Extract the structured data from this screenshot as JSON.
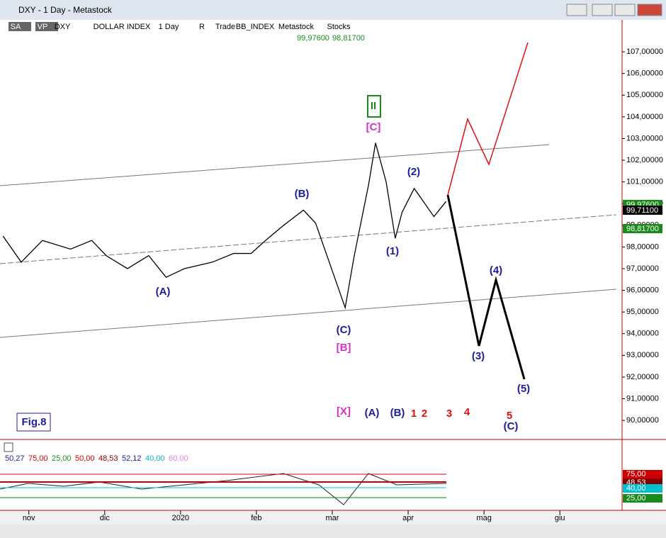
{
  "window": {
    "title": "DXY - 1 Day - Metastock"
  },
  "toolbar": {
    "items": [
      "SA",
      "VP",
      "DXY",
      "DOLLAR INDEX",
      "1 Day",
      "R",
      "Trade",
      "BB_INDEX",
      "Metastock",
      "Stocks"
    ],
    "quote_high": "99,97600",
    "quote_low": "98,81700"
  },
  "chart_data": {
    "type": "line",
    "color": "#000000",
    "x": [
      -0.34,
      -0.1,
      0.18,
      0.55,
      0.83,
      1.02,
      1.3,
      1.58,
      1.81,
      2.05,
      2.42,
      2.7,
      2.93,
      3.12,
      3.36,
      3.62,
      3.78,
      3.96,
      4.17,
      4.29,
      4.48,
      4.57,
      4.71,
      4.83,
      4.92,
      5.08,
      5.18,
      5.34,
      5.5
    ],
    "values": [
      98.5,
      97.3,
      98.3,
      97.9,
      98.3,
      97.6,
      97.0,
      97.6,
      96.6,
      97.0,
      97.3,
      97.7,
      97.7,
      98.3,
      99.0,
      99.7,
      99.1,
      97.3,
      95.2,
      97.6,
      100.9,
      102.8,
      101.0,
      98.4,
      99.6,
      100.7,
      100.2,
      99.4,
      100.1
    ],
    "xlim": [
      -0.38,
      7.82
    ],
    "xticks": [
      {
        "value": 0,
        "label": "nov"
      },
      {
        "value": 1,
        "label": "dic"
      },
      {
        "value": 2,
        "label": "2020"
      },
      {
        "value": 3,
        "label": "feb"
      },
      {
        "value": 4,
        "label": "mar"
      },
      {
        "value": 5,
        "label": "apr"
      },
      {
        "value": 6,
        "label": "mag"
      },
      {
        "value": 7,
        "label": "giu"
      }
    ],
    "ylim": [
      89.12,
      108.41
    ],
    "yticks": [
      {
        "value": 90,
        "label": "90,00000"
      },
      {
        "value": 91,
        "label": "91,00000"
      },
      {
        "value": 92,
        "label": "92,00000"
      },
      {
        "value": 93,
        "label": "93,00000"
      },
      {
        "value": 94,
        "label": "94,00000"
      },
      {
        "value": 95,
        "label": "95,00000"
      },
      {
        "value": 96,
        "label": "96,00000"
      },
      {
        "value": 97,
        "label": "97,00000"
      },
      {
        "value": 98,
        "label": "98,00000"
      },
      {
        "value": 99,
        "label": "99,00000"
      },
      {
        "value": 100,
        "label": "100,00000"
      },
      {
        "value": 101,
        "label": "101,00000"
      },
      {
        "value": 102,
        "label": "102,00000"
      },
      {
        "value": 103,
        "label": "103,00000"
      },
      {
        "value": 104,
        "label": "104,00000"
      },
      {
        "value": 105,
        "label": "105,00000"
      },
      {
        "value": 106,
        "label": "106,00000"
      },
      {
        "value": 107,
        "label": "107,00000"
      }
    ],
    "price_markers": [
      {
        "text": "99,97600",
        "color": "#1a8a1a"
      },
      {
        "text": "99,71100",
        "color": "#000000"
      },
      {
        "text": "98,81700",
        "color": "#1a8a1a"
      }
    ]
  },
  "wave_labels": [
    {
      "text": "(A)",
      "color": "#1c1c9c"
    },
    {
      "text": "(B)",
      "color": "#1c1c9c"
    },
    {
      "text": "(C)",
      "color": "#1c1c9c"
    },
    {
      "text": "[B]",
      "color": "#d62fc9"
    },
    {
      "text": "[C]",
      "color": "#d62fc9"
    },
    {
      "text": "II",
      "color": "#1a8a1a"
    },
    {
      "text": "(2)",
      "color": "#1c1c9c"
    },
    {
      "text": "(1)",
      "color": "#1c1c9c"
    },
    {
      "text": "(4)",
      "color": "#1c1c9c"
    },
    {
      "text": "(3)",
      "color": "#1c1c9c"
    },
    {
      "text": "(5)",
      "color": "#1c1c9c"
    },
    {
      "text": "[X]",
      "color": "#d62fc9"
    },
    {
      "text": "(A)",
      "color": "#1c1c9c"
    },
    {
      "text": "(B)",
      "color": "#1c1c9c"
    },
    {
      "text": "1",
      "color": "#e01010"
    },
    {
      "text": "2",
      "color": "#e01010"
    },
    {
      "text": "3",
      "color": "#e01010"
    },
    {
      "text": "4",
      "color": "#e01010"
    },
    {
      "text": "5",
      "color": "#e01010"
    },
    {
      "text": "(C)",
      "color": "#1c1c9c"
    },
    {
      "text": "Fig.8",
      "color": "#1c1c9c"
    }
  ],
  "indicator": {
    "header": [
      {
        "text": "50,27",
        "color": "#1c1c9c"
      },
      {
        "text": "75,00",
        "color": "#cc0000"
      },
      {
        "text": "25,00",
        "color": "#1a8a1a"
      },
      {
        "text": "50,00",
        "color": "#cc0000"
      },
      {
        "text": "48,53",
        "color": "#800000"
      },
      {
        "text": "52,12",
        "color": "#1c1c9c"
      },
      {
        "text": "40,00",
        "color": "#00b0c0"
      },
      {
        "text": "60,00",
        "color": "#e080e0"
      }
    ],
    "markers": [
      {
        "text": "75,00",
        "color": "#cc0000"
      },
      {
        "text": "48,53",
        "color": "#800000"
      },
      {
        "text": "40,00",
        "color": "#00c0d0"
      },
      {
        "text": "25,00",
        "color": "#1a8a1a"
      }
    ]
  }
}
